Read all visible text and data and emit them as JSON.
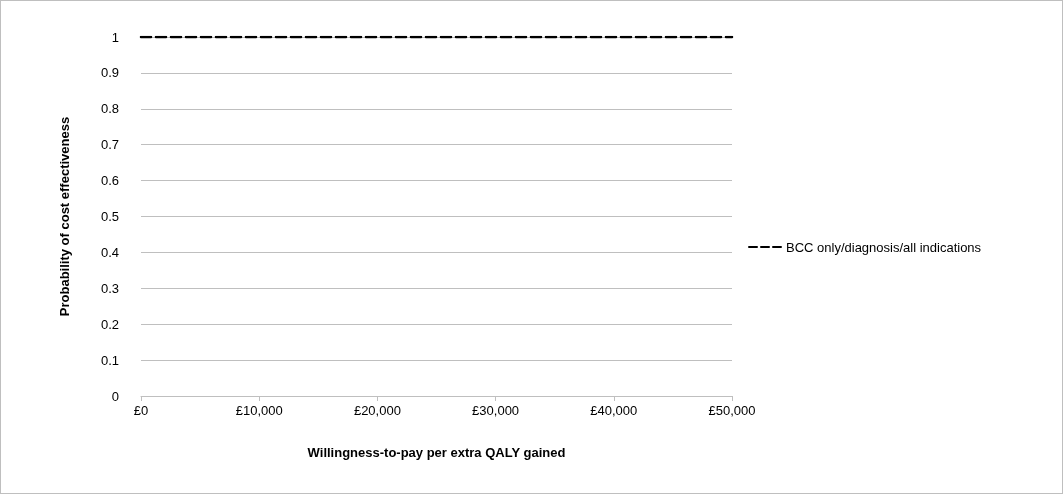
{
  "chart_data": {
    "type": "line",
    "xlabel": "Willingness-to-pay per extra QALY gained",
    "ylabel": "Probability of cost effectiveness",
    "x": [
      0,
      50000
    ],
    "series": [
      {
        "name": "BCC only/diagnosis/all indications",
        "color": "#000000",
        "values": [
          1,
          1
        ]
      }
    ],
    "xlim": [
      0,
      50000
    ],
    "xticks": [
      {
        "value": 0,
        "label": "£0"
      },
      {
        "value": 10000,
        "label": "£10,000"
      },
      {
        "value": 20000,
        "label": "£20,000"
      },
      {
        "value": 30000,
        "label": "£30,000"
      },
      {
        "value": 40000,
        "label": "£40,000"
      },
      {
        "value": 50000,
        "label": "£50,000"
      }
    ],
    "ylim": [
      0,
      1
    ],
    "yticks": [
      0,
      0.1,
      0.2,
      0.3,
      0.4,
      0.5,
      0.6,
      0.7,
      0.8,
      0.9,
      1
    ],
    "grid": "y",
    "legend": "right",
    "marker": "none",
    "line_style": "dashed"
  }
}
